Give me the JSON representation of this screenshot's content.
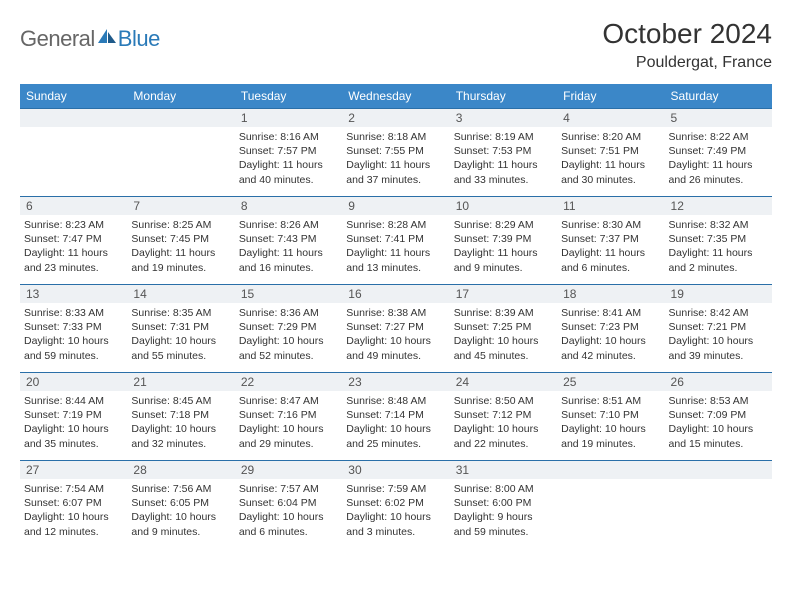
{
  "logo": {
    "text1": "General",
    "text2": "Blue"
  },
  "title": "October 2024",
  "location": "Pouldergat, France",
  "colors": {
    "header_bg": "#3b87c8",
    "header_text": "#ffffff",
    "daynum_bg": "#eef1f4",
    "border": "#2a6fa8",
    "logo_blue": "#2a7ab8",
    "logo_gray": "#666666"
  },
  "day_headers": [
    "Sunday",
    "Monday",
    "Tuesday",
    "Wednesday",
    "Thursday",
    "Friday",
    "Saturday"
  ],
  "weeks": [
    [
      {
        "n": "",
        "sr": "",
        "ss": "",
        "dl": ""
      },
      {
        "n": "",
        "sr": "",
        "ss": "",
        "dl": ""
      },
      {
        "n": "1",
        "sr": "Sunrise: 8:16 AM",
        "ss": "Sunset: 7:57 PM",
        "dl": "Daylight: 11 hours and 40 minutes."
      },
      {
        "n": "2",
        "sr": "Sunrise: 8:18 AM",
        "ss": "Sunset: 7:55 PM",
        "dl": "Daylight: 11 hours and 37 minutes."
      },
      {
        "n": "3",
        "sr": "Sunrise: 8:19 AM",
        "ss": "Sunset: 7:53 PM",
        "dl": "Daylight: 11 hours and 33 minutes."
      },
      {
        "n": "4",
        "sr": "Sunrise: 8:20 AM",
        "ss": "Sunset: 7:51 PM",
        "dl": "Daylight: 11 hours and 30 minutes."
      },
      {
        "n": "5",
        "sr": "Sunrise: 8:22 AM",
        "ss": "Sunset: 7:49 PM",
        "dl": "Daylight: 11 hours and 26 minutes."
      }
    ],
    [
      {
        "n": "6",
        "sr": "Sunrise: 8:23 AM",
        "ss": "Sunset: 7:47 PM",
        "dl": "Daylight: 11 hours and 23 minutes."
      },
      {
        "n": "7",
        "sr": "Sunrise: 8:25 AM",
        "ss": "Sunset: 7:45 PM",
        "dl": "Daylight: 11 hours and 19 minutes."
      },
      {
        "n": "8",
        "sr": "Sunrise: 8:26 AM",
        "ss": "Sunset: 7:43 PM",
        "dl": "Daylight: 11 hours and 16 minutes."
      },
      {
        "n": "9",
        "sr": "Sunrise: 8:28 AM",
        "ss": "Sunset: 7:41 PM",
        "dl": "Daylight: 11 hours and 13 minutes."
      },
      {
        "n": "10",
        "sr": "Sunrise: 8:29 AM",
        "ss": "Sunset: 7:39 PM",
        "dl": "Daylight: 11 hours and 9 minutes."
      },
      {
        "n": "11",
        "sr": "Sunrise: 8:30 AM",
        "ss": "Sunset: 7:37 PM",
        "dl": "Daylight: 11 hours and 6 minutes."
      },
      {
        "n": "12",
        "sr": "Sunrise: 8:32 AM",
        "ss": "Sunset: 7:35 PM",
        "dl": "Daylight: 11 hours and 2 minutes."
      }
    ],
    [
      {
        "n": "13",
        "sr": "Sunrise: 8:33 AM",
        "ss": "Sunset: 7:33 PM",
        "dl": "Daylight: 10 hours and 59 minutes."
      },
      {
        "n": "14",
        "sr": "Sunrise: 8:35 AM",
        "ss": "Sunset: 7:31 PM",
        "dl": "Daylight: 10 hours and 55 minutes."
      },
      {
        "n": "15",
        "sr": "Sunrise: 8:36 AM",
        "ss": "Sunset: 7:29 PM",
        "dl": "Daylight: 10 hours and 52 minutes."
      },
      {
        "n": "16",
        "sr": "Sunrise: 8:38 AM",
        "ss": "Sunset: 7:27 PM",
        "dl": "Daylight: 10 hours and 49 minutes."
      },
      {
        "n": "17",
        "sr": "Sunrise: 8:39 AM",
        "ss": "Sunset: 7:25 PM",
        "dl": "Daylight: 10 hours and 45 minutes."
      },
      {
        "n": "18",
        "sr": "Sunrise: 8:41 AM",
        "ss": "Sunset: 7:23 PM",
        "dl": "Daylight: 10 hours and 42 minutes."
      },
      {
        "n": "19",
        "sr": "Sunrise: 8:42 AM",
        "ss": "Sunset: 7:21 PM",
        "dl": "Daylight: 10 hours and 39 minutes."
      }
    ],
    [
      {
        "n": "20",
        "sr": "Sunrise: 8:44 AM",
        "ss": "Sunset: 7:19 PM",
        "dl": "Daylight: 10 hours and 35 minutes."
      },
      {
        "n": "21",
        "sr": "Sunrise: 8:45 AM",
        "ss": "Sunset: 7:18 PM",
        "dl": "Daylight: 10 hours and 32 minutes."
      },
      {
        "n": "22",
        "sr": "Sunrise: 8:47 AM",
        "ss": "Sunset: 7:16 PM",
        "dl": "Daylight: 10 hours and 29 minutes."
      },
      {
        "n": "23",
        "sr": "Sunrise: 8:48 AM",
        "ss": "Sunset: 7:14 PM",
        "dl": "Daylight: 10 hours and 25 minutes."
      },
      {
        "n": "24",
        "sr": "Sunrise: 8:50 AM",
        "ss": "Sunset: 7:12 PM",
        "dl": "Daylight: 10 hours and 22 minutes."
      },
      {
        "n": "25",
        "sr": "Sunrise: 8:51 AM",
        "ss": "Sunset: 7:10 PM",
        "dl": "Daylight: 10 hours and 19 minutes."
      },
      {
        "n": "26",
        "sr": "Sunrise: 8:53 AM",
        "ss": "Sunset: 7:09 PM",
        "dl": "Daylight: 10 hours and 15 minutes."
      }
    ],
    [
      {
        "n": "27",
        "sr": "Sunrise: 7:54 AM",
        "ss": "Sunset: 6:07 PM",
        "dl": "Daylight: 10 hours and 12 minutes."
      },
      {
        "n": "28",
        "sr": "Sunrise: 7:56 AM",
        "ss": "Sunset: 6:05 PM",
        "dl": "Daylight: 10 hours and 9 minutes."
      },
      {
        "n": "29",
        "sr": "Sunrise: 7:57 AM",
        "ss": "Sunset: 6:04 PM",
        "dl": "Daylight: 10 hours and 6 minutes."
      },
      {
        "n": "30",
        "sr": "Sunrise: 7:59 AM",
        "ss": "Sunset: 6:02 PM",
        "dl": "Daylight: 10 hours and 3 minutes."
      },
      {
        "n": "31",
        "sr": "Sunrise: 8:00 AM",
        "ss": "Sunset: 6:00 PM",
        "dl": "Daylight: 9 hours and 59 minutes."
      },
      {
        "n": "",
        "sr": "",
        "ss": "",
        "dl": ""
      },
      {
        "n": "",
        "sr": "",
        "ss": "",
        "dl": ""
      }
    ]
  ]
}
